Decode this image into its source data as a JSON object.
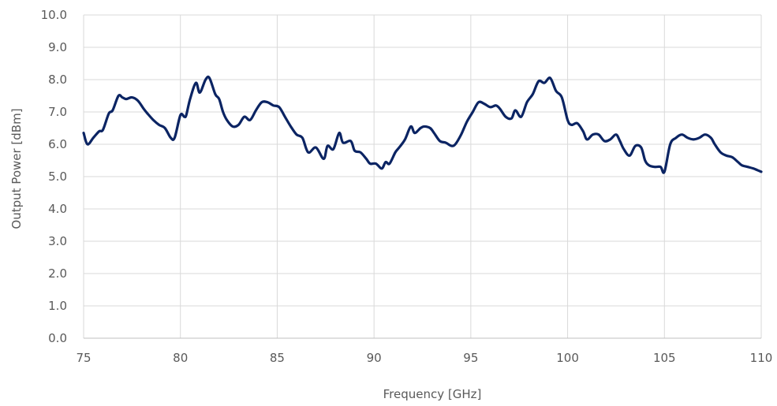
{
  "chart_data": {
    "type": "line",
    "title": "",
    "xlabel": "Frequency [GHz]",
    "ylabel": "Output Power [dBm]",
    "xlim": [
      75,
      110
    ],
    "ylim": [
      0,
      10
    ],
    "x_ticks": [
      75,
      80,
      85,
      90,
      95,
      100,
      105,
      110
    ],
    "y_ticks": [
      "0.0",
      "1.0",
      "2.0",
      "3.0",
      "4.0",
      "5.0",
      "6.0",
      "7.0",
      "8.0",
      "9.0",
      "10.0"
    ],
    "grid": true,
    "legend": "none",
    "series_color": "#0b2463",
    "series": [
      {
        "x": [
          75.0,
          75.2,
          75.5,
          75.8,
          76.0,
          76.3,
          76.5,
          76.8,
          77.0,
          77.2,
          77.5,
          77.8,
          78.1,
          78.3,
          78.6,
          78.9,
          79.2,
          79.5,
          79.7,
          80.0,
          80.2,
          80.3,
          80.5,
          80.8,
          81.0,
          81.3,
          81.5,
          81.8,
          82.0,
          82.2,
          82.4,
          82.7,
          83.0,
          83.3,
          83.6,
          83.9,
          84.2,
          84.5,
          84.8,
          85.1,
          85.4,
          85.7,
          86.0,
          86.3,
          86.6,
          87.0,
          87.4,
          87.6,
          87.9,
          88.2,
          88.4,
          88.8,
          89.0,
          89.3,
          89.6,
          89.8,
          90.1,
          90.4,
          90.6,
          90.8,
          91.1,
          91.3,
          91.6,
          91.9,
          92.1,
          92.4,
          92.6,
          92.9,
          93.1,
          93.4,
          93.7,
          94.0,
          94.2,
          94.5,
          94.8,
          95.1,
          95.4,
          95.7,
          96.0,
          96.3,
          96.5,
          96.8,
          97.1,
          97.3,
          97.6,
          97.9,
          98.2,
          98.5,
          98.8,
          99.1,
          99.4,
          99.7,
          100.0,
          100.2,
          100.5,
          100.8,
          101.0,
          101.3,
          101.6,
          101.9,
          102.2,
          102.5,
          102.7,
          102.9,
          103.2,
          103.5,
          103.8,
          104.0,
          104.2,
          104.5,
          104.8,
          105.0,
          105.3,
          105.6,
          105.9,
          106.2,
          106.5,
          106.8,
          107.1,
          107.4,
          107.6,
          107.9,
          108.2,
          108.5,
          108.8,
          109.0,
          109.3,
          109.6,
          109.8,
          110.0
        ],
        "values": [
          6.35,
          6.0,
          6.2,
          6.4,
          6.45,
          6.95,
          7.05,
          7.5,
          7.45,
          7.4,
          7.45,
          7.35,
          7.1,
          6.95,
          6.75,
          6.6,
          6.5,
          6.2,
          6.2,
          6.9,
          6.85,
          6.9,
          7.4,
          7.9,
          7.6,
          8.0,
          8.05,
          7.55,
          7.4,
          7.0,
          6.75,
          6.55,
          6.6,
          6.85,
          6.75,
          7.05,
          7.3,
          7.3,
          7.2,
          7.15,
          6.85,
          6.55,
          6.3,
          6.2,
          5.75,
          5.9,
          5.55,
          5.95,
          5.85,
          6.35,
          6.05,
          6.1,
          5.8,
          5.75,
          5.55,
          5.4,
          5.4,
          5.25,
          5.45,
          5.4,
          5.75,
          5.9,
          6.15,
          6.55,
          6.35,
          6.5,
          6.55,
          6.5,
          6.35,
          6.1,
          6.05,
          5.95,
          6.0,
          6.3,
          6.7,
          7.0,
          7.3,
          7.25,
          7.15,
          7.2,
          7.1,
          6.85,
          6.8,
          7.05,
          6.85,
          7.3,
          7.55,
          7.95,
          7.9,
          8.05,
          7.65,
          7.45,
          6.75,
          6.6,
          6.65,
          6.4,
          6.15,
          6.3,
          6.3,
          6.1,
          6.15,
          6.3,
          6.1,
          5.85,
          5.65,
          5.95,
          5.9,
          5.5,
          5.35,
          5.3,
          5.3,
          5.15,
          6.0,
          6.2,
          6.3,
          6.2,
          6.15,
          6.2,
          6.3,
          6.2,
          6.0,
          5.75,
          5.65,
          5.6,
          5.45,
          5.35,
          5.3,
          5.25,
          5.2,
          5.15
        ],
        "name": ""
      }
    ]
  }
}
